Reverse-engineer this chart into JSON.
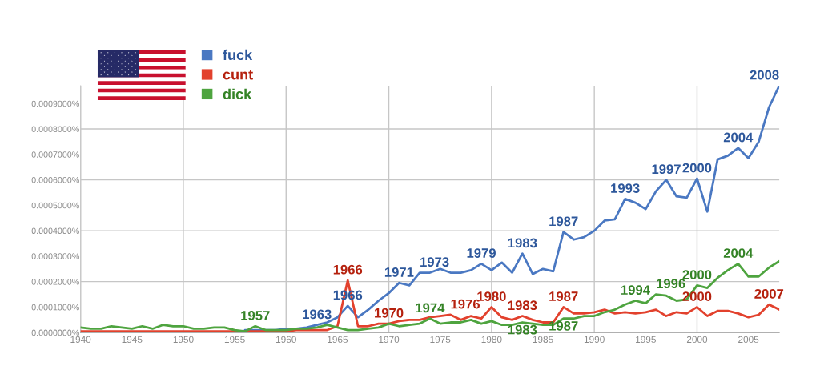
{
  "chart_data": {
    "type": "line",
    "x": [
      1940,
      1941,
      1942,
      1943,
      1944,
      1945,
      1946,
      1947,
      1948,
      1949,
      1950,
      1951,
      1952,
      1953,
      1954,
      1955,
      1956,
      1957,
      1958,
      1959,
      1960,
      1961,
      1962,
      1963,
      1964,
      1965,
      1966,
      1967,
      1968,
      1969,
      1970,
      1971,
      1972,
      1973,
      1974,
      1975,
      1976,
      1977,
      1978,
      1979,
      1980,
      1981,
      1982,
      1983,
      1984,
      1985,
      1986,
      1987,
      1988,
      1989,
      1990,
      1991,
      1992,
      1993,
      1994,
      1995,
      1996,
      1997,
      1998,
      1999,
      2000,
      2001,
      2002,
      2003,
      2004,
      2005,
      2006,
      2007,
      2008
    ],
    "series": [
      {
        "name": "fuck",
        "color": "#4a78c2",
        "values": [
          null,
          null,
          null,
          null,
          null,
          null,
          null,
          null,
          null,
          null,
          null,
          null,
          null,
          null,
          null,
          null,
          1e-05,
          1e-05,
          1e-05,
          1e-05,
          1.5e-05,
          1.5e-05,
          2e-05,
          3e-05,
          4e-05,
          6e-05,
          0.000105,
          6e-05,
          9e-05,
          0.000125,
          0.000155,
          0.000195,
          0.000185,
          0.000235,
          0.000235,
          0.00025,
          0.000235,
          0.000235,
          0.000245,
          0.00027,
          0.000245,
          0.000275,
          0.000235,
          0.00031,
          0.00023,
          0.00025,
          0.00024,
          0.000395,
          0.000365,
          0.000375,
          0.0004,
          0.00044,
          0.000445,
          0.000525,
          0.00051,
          0.000485,
          0.000555,
          0.0006,
          0.000535,
          0.00053,
          0.000605,
          0.000475,
          0.00068,
          0.000695,
          0.000725,
          0.000685,
          0.00075,
          0.000885,
          0.00097
        ]
      },
      {
        "name": "cunt",
        "color": "#e2412d",
        "values": [
          5e-06,
          5e-06,
          5e-06,
          5e-06,
          5e-06,
          5e-06,
          5e-06,
          5e-06,
          5e-06,
          5e-06,
          5e-06,
          5e-06,
          5e-06,
          5e-06,
          5e-06,
          5e-06,
          5e-06,
          5e-06,
          5e-06,
          5e-06,
          5e-06,
          1e-05,
          1e-05,
          1e-05,
          1e-05,
          2.5e-05,
          0.000205,
          2.5e-05,
          2.5e-05,
          3.5e-05,
          3.5e-05,
          4.5e-05,
          5e-05,
          5e-05,
          6e-05,
          6.5e-05,
          7e-05,
          5e-05,
          6.5e-05,
          5.5e-05,
          0.0001,
          6e-05,
          5e-05,
          6.5e-05,
          5e-05,
          4e-05,
          4e-05,
          0.0001,
          7.5e-05,
          7.5e-05,
          8e-05,
          9e-05,
          7.5e-05,
          8e-05,
          7.5e-05,
          8e-05,
          9e-05,
          6.5e-05,
          8e-05,
          7.5e-05,
          0.0001,
          6.5e-05,
          8.5e-05,
          8.5e-05,
          7.5e-05,
          6e-05,
          7e-05,
          0.00011,
          9e-05
        ]
      },
      {
        "name": "dick",
        "color": "#4ea43f",
        "values": [
          2e-05,
          1.5e-05,
          1.5e-05,
          2.5e-05,
          2e-05,
          1.5e-05,
          2.5e-05,
          1.5e-05,
          3e-05,
          2.5e-05,
          2.5e-05,
          1.5e-05,
          1.5e-05,
          2e-05,
          2e-05,
          1e-05,
          5e-06,
          2.5e-05,
          1e-05,
          1e-05,
          1e-05,
          1.5e-05,
          1.5e-05,
          2e-05,
          3e-05,
          2e-05,
          1e-05,
          1e-05,
          1.5e-05,
          2e-05,
          3.5e-05,
          2.5e-05,
          3e-05,
          3.5e-05,
          5.5e-05,
          3.5e-05,
          4e-05,
          4e-05,
          5e-05,
          3.5e-05,
          4.5e-05,
          3e-05,
          3e-05,
          4e-05,
          3.5e-05,
          3e-05,
          3e-05,
          5.5e-05,
          5.5e-05,
          6.5e-05,
          6.5e-05,
          8e-05,
          9e-05,
          0.00011,
          0.000125,
          0.000115,
          0.00015,
          0.000145,
          0.000125,
          0.00013,
          0.000185,
          0.000175,
          0.000215,
          0.000245,
          0.00027,
          0.00022,
          0.00022,
          0.000255,
          0.00028
        ]
      }
    ],
    "xlim": [
      1940,
      2008
    ],
    "xticks": [
      1940,
      1945,
      1950,
      1955,
      1960,
      1965,
      1970,
      1975,
      1980,
      1985,
      1990,
      1995,
      2000,
      2005
    ],
    "ylim": [
      0,
      0.00097
    ],
    "yticks": [
      {
        "value": 0,
        "label": "0.0000000%"
      },
      {
        "value": 0.0001,
        "label": "0.0001000%"
      },
      {
        "value": 0.0002,
        "label": "0.0002000%"
      },
      {
        "value": 0.0003,
        "label": "0.0003000%"
      },
      {
        "value": 0.0004,
        "label": "0.0004000%"
      },
      {
        "value": 0.0005,
        "label": "0.0005000%"
      },
      {
        "value": 0.0006,
        "label": "0.0006000%"
      },
      {
        "value": 0.0007,
        "label": "0.0007000%"
      },
      {
        "value": 0.0008,
        "label": "0.0008000%"
      },
      {
        "value": 0.0009,
        "label": "0.0009000%"
      }
    ],
    "grid": true,
    "legend": "top left",
    "annotations": [
      {
        "text": "1957",
        "x": 1957,
        "y": 2.5e-05
      },
      {
        "text": "1963",
        "x": 1963,
        "y": 3e-05
      },
      {
        "text": "1966",
        "x": 1966,
        "y": 0.000205
      },
      {
        "text": "1966",
        "x": 1966,
        "y": 0.000105
      },
      {
        "text": "1970",
        "x": 1970,
        "y": 3.5e-05
      },
      {
        "text": "1971",
        "x": 1971,
        "y": 0.000195
      },
      {
        "text": "1973",
        "x": 1973,
        "y": 0.000235
      },
      {
        "text": "1974",
        "x": 1974,
        "y": 5.5e-05
      },
      {
        "text": "1976",
        "x": 1976,
        "y": 7e-05
      },
      {
        "text": "1979",
        "x": 1979,
        "y": 0.00027
      },
      {
        "text": "1980",
        "x": 1980,
        "y": 0.0001
      },
      {
        "text": "1983",
        "x": 1983,
        "y": 0.00031
      },
      {
        "text": "1983",
        "x": 1983,
        "y": 6.5e-05
      },
      {
        "text": "1983",
        "x": 1983,
        "y": 4e-05
      },
      {
        "text": "1987",
        "x": 1987,
        "y": 0.000395
      },
      {
        "text": "1987",
        "x": 1987,
        "y": 0.0001
      },
      {
        "text": "1987",
        "x": 1987,
        "y": 5.5e-05
      },
      {
        "text": "1993",
        "x": 1993,
        "y": 0.000525
      },
      {
        "text": "1994",
        "x": 1994,
        "y": 0.000125
      },
      {
        "text": "1996",
        "x": 1996,
        "y": 0.00015
      },
      {
        "text": "1997",
        "x": 1997,
        "y": 0.0006
      },
      {
        "text": "2000",
        "x": 2000,
        "y": 0.000605
      },
      {
        "text": "2000",
        "x": 2000,
        "y": 0.000185
      },
      {
        "text": "2000",
        "x": 2000,
        "y": 0.0001
      },
      {
        "text": "2004",
        "x": 2004,
        "y": 0.000725
      },
      {
        "text": "2004",
        "x": 2004,
        "y": 0.00027
      },
      {
        "text": "2007",
        "x": 2007,
        "y": 0.00011
      },
      {
        "text": "2008",
        "x": 2008,
        "y": 0.00097
      }
    ]
  }
}
